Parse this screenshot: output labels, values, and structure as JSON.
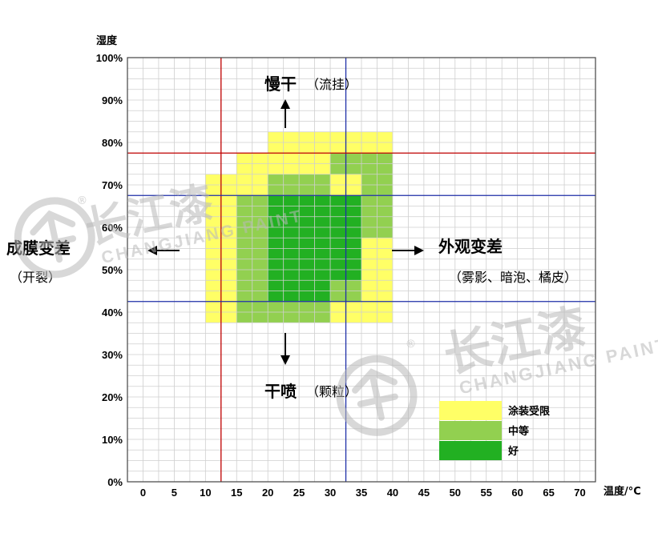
{
  "chart_data": {
    "type": "heatmap",
    "xlabel": "温度/°C",
    "ylabel": "湿度",
    "x_ticks": [
      0,
      5,
      10,
      15,
      20,
      25,
      30,
      35,
      40,
      45,
      50,
      55,
      60,
      65,
      70
    ],
    "y_ticks": [
      "0%",
      "10%",
      "20%",
      "30%",
      "40%",
      "50%",
      "60%",
      "70%",
      "80%",
      "90%",
      "100%"
    ],
    "xlim": [
      -2.5,
      72.5
    ],
    "ylim": [
      0,
      100
    ],
    "grid": true,
    "colors": {
      "limited": "#ffff66",
      "medium": "#92d050",
      "good": "#22b022"
    },
    "legend": {
      "placement": "bottom-right",
      "items": [
        {
          "key": "limited",
          "label": "涂装受限"
        },
        {
          "key": "medium",
          "label": "中等"
        },
        {
          "key": "good",
          "label": "好"
        }
      ]
    },
    "cells": [
      {
        "x": [
          20,
          40
        ],
        "y": [
          77.5,
          82.5
        ],
        "level": "limited"
      },
      {
        "x": [
          15,
          40
        ],
        "y": [
          72.5,
          77.5
        ],
        "level": "limited"
      },
      {
        "x": [
          10,
          35
        ],
        "y": [
          67.5,
          72.5
        ],
        "level": "limited"
      },
      {
        "x": [
          10,
          15
        ],
        "y": [
          37.5,
          67.5
        ],
        "level": "limited"
      },
      {
        "x": [
          35,
          40
        ],
        "y": [
          37.5,
          57.5
        ],
        "level": "limited"
      },
      {
        "x": [
          30,
          40
        ],
        "y": [
          37.5,
          42.5
        ],
        "level": "limited"
      },
      {
        "x": [
          20,
          30
        ],
        "y": [
          67.5,
          72.5
        ],
        "level": "medium"
      },
      {
        "x": [
          30,
          40
        ],
        "y": [
          72.5,
          77.5
        ],
        "level": "medium"
      },
      {
        "x": [
          35,
          40
        ],
        "y": [
          57.5,
          72.5
        ],
        "level": "medium"
      },
      {
        "x": [
          15,
          20
        ],
        "y": [
          37.5,
          67.5
        ],
        "level": "medium"
      },
      {
        "x": [
          20,
          30
        ],
        "y": [
          37.5,
          42.5
        ],
        "level": "medium"
      },
      {
        "x": [
          30,
          35
        ],
        "y": [
          42.5,
          47.5
        ],
        "level": "medium"
      },
      {
        "x": [
          20,
          35
        ],
        "y": [
          47.5,
          67.5
        ],
        "level": "good"
      },
      {
        "x": [
          20,
          30
        ],
        "y": [
          42.5,
          47.5
        ],
        "level": "good"
      }
    ],
    "reference_lines": [
      {
        "axis": "x",
        "value": 12.5,
        "color": "#c00000"
      },
      {
        "axis": "x",
        "value": 32.5,
        "color": "#1f2fa8"
      },
      {
        "axis": "y",
        "value": 77.5,
        "color": "#c00000"
      },
      {
        "axis": "y",
        "value": 67.5,
        "color": "#1f2fa8"
      },
      {
        "axis": "y",
        "value": 42.5,
        "color": "#1f2fa8"
      }
    ],
    "annotations": {
      "top": {
        "main": "慢干",
        "sub": "（流挂）",
        "arrow": "up"
      },
      "bottom": {
        "main": "干喷",
        "sub": "（颗粒）",
        "arrow": "down"
      },
      "left": {
        "main": "成膜变差",
        "sub": "（开裂）",
        "arrow": "left"
      },
      "right": {
        "main": "外观变差",
        "sub": "（雾影、暗泡、橘皮）",
        "arrow": "right"
      }
    }
  },
  "watermark": {
    "brand_cn": "长江漆",
    "brand_en": "CHANGJIANG PAINT",
    "registered": "®"
  }
}
